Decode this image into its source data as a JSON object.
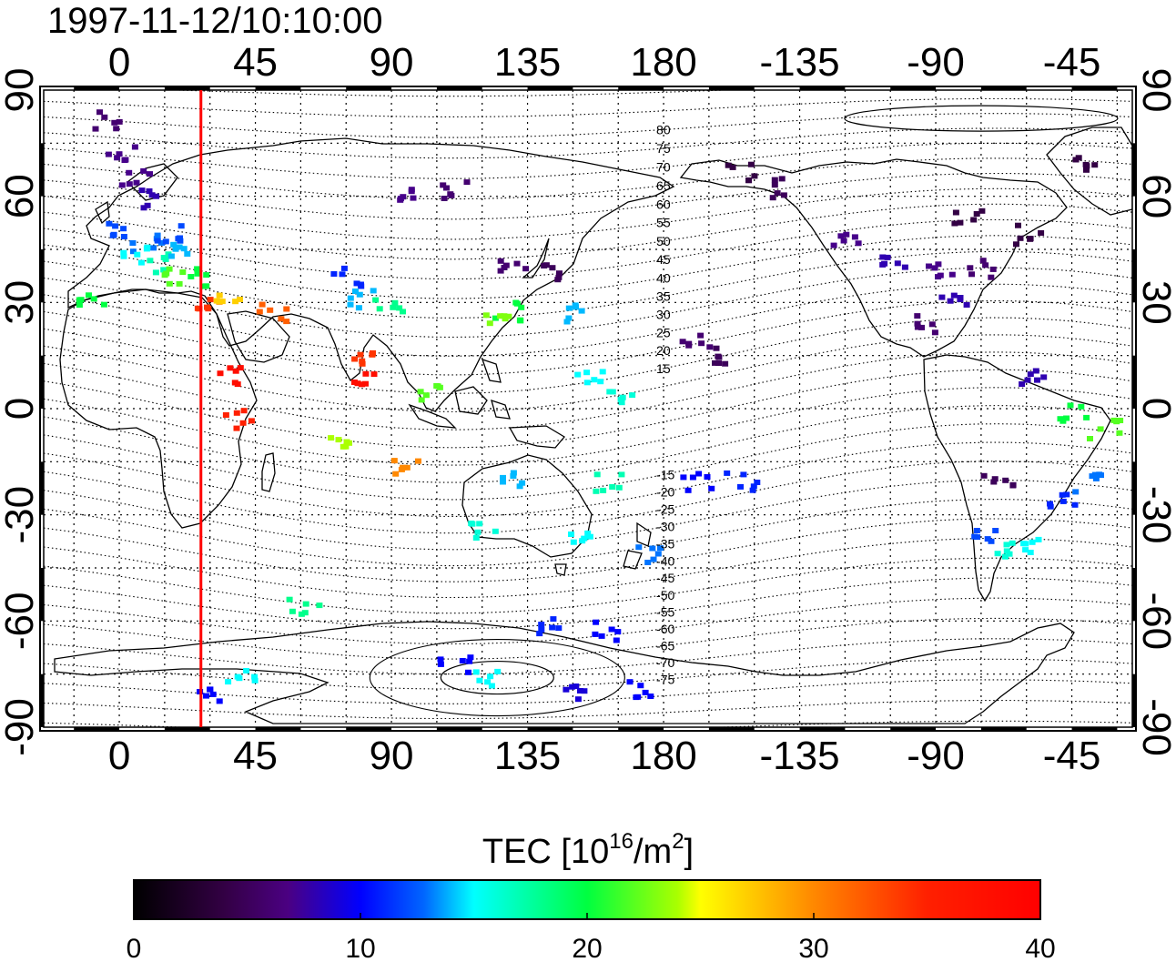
{
  "title": "1997-11-12/10:10:00",
  "top_lon_labels": [
    "0",
    "45",
    "90",
    "135",
    "180",
    "-135",
    "-90",
    "-45"
  ],
  "bottom_lon_labels": [
    "0",
    "45",
    "90",
    "135",
    "180",
    "-135",
    "-90",
    "-45"
  ],
  "lat_labels": [
    "90",
    "60",
    "30",
    "0",
    "-30",
    "-60",
    "-90"
  ],
  "mlat_labels": [
    "80",
    "75",
    "70",
    "65",
    "60",
    "55",
    "50",
    "45",
    "40",
    "35",
    "30",
    "25",
    "20",
    "15",
    "-15",
    "-20",
    "-25",
    "-30",
    "-35",
    "-40",
    "-45",
    "-50",
    "-55",
    "-60",
    "-65",
    "-70",
    "-75"
  ],
  "colorbar": {
    "label_main": "TEC  [10",
    "label_sup1": "16",
    "label_mid": "/m",
    "label_sup2": "2",
    "label_end": "]",
    "ticks": [
      "0",
      "10",
      "20",
      "30",
      "40"
    ],
    "min": 0,
    "max": 40
  },
  "colors": {
    "meridian_line": "#ff0000",
    "frame": "#000000"
  },
  "chart_data": {
    "type": "heatmap",
    "title": "1997-11-12/10:10:00",
    "xlim": [
      -25,
      335
    ],
    "ylim": [
      -90,
      90
    ],
    "value_range": [
      0,
      40
    ],
    "marked_meridian_lon": 27,
    "tec_points": [
      {
        "lon": -5,
        "lat": 82,
        "tec": 6
      },
      {
        "lon": 0,
        "lat": 72,
        "tec": 7
      },
      {
        "lon": 5,
        "lat": 66,
        "tec": 7
      },
      {
        "lon": 10,
        "lat": 60,
        "tec": 8
      },
      {
        "lon": 0,
        "lat": 52,
        "tec": 12
      },
      {
        "lon": 8,
        "lat": 48,
        "tec": 13
      },
      {
        "lon": 15,
        "lat": 50,
        "tec": 12
      },
      {
        "lon": 5,
        "lat": 44,
        "tec": 15
      },
      {
        "lon": 12,
        "lat": 42,
        "tec": 17
      },
      {
        "lon": 20,
        "lat": 45,
        "tec": 14
      },
      {
        "lon": 15,
        "lat": 38,
        "tec": 22
      },
      {
        "lon": 25,
        "lat": 38,
        "tec": 20
      },
      {
        "lon": -10,
        "lat": 32,
        "tec": 20
      },
      {
        "lon": 30,
        "lat": 30,
        "tec": 34
      },
      {
        "lon": 35,
        "lat": 33,
        "tec": 27
      },
      {
        "lon": 50,
        "lat": 28,
        "tec": 32
      },
      {
        "lon": 37,
        "lat": 10,
        "tec": 38
      },
      {
        "lon": 38,
        "lat": -2,
        "tec": 35
      },
      {
        "lon": 75,
        "lat": 38,
        "tec": 11
      },
      {
        "lon": 80,
        "lat": 32,
        "tec": 14
      },
      {
        "lon": 88,
        "lat": 30,
        "tec": 18
      },
      {
        "lon": 78,
        "lat": 15,
        "tec": 34
      },
      {
        "lon": 80,
        "lat": 10,
        "tec": 38
      },
      {
        "lon": 72,
        "lat": -10,
        "tec": 24
      },
      {
        "lon": 100,
        "lat": 5,
        "tec": 22
      },
      {
        "lon": 95,
        "lat": -15,
        "tec": 30
      },
      {
        "lon": 95,
        "lat": 62,
        "tec": 7
      },
      {
        "lon": 110,
        "lat": 62,
        "tec": 6
      },
      {
        "lon": 130,
        "lat": 42,
        "tec": 6
      },
      {
        "lon": 140,
        "lat": 40,
        "tec": 5
      },
      {
        "lon": 128,
        "lat": 28,
        "tec": 20
      },
      {
        "lon": 125,
        "lat": 25,
        "tec": 23
      },
      {
        "lon": 150,
        "lat": 28,
        "tec": 14
      },
      {
        "lon": 155,
        "lat": 10,
        "tec": 15
      },
      {
        "lon": 165,
        "lat": 5,
        "tec": 16
      },
      {
        "lon": 130,
        "lat": -20,
        "tec": 14
      },
      {
        "lon": 150,
        "lat": -35,
        "tec": 15
      },
      {
        "lon": 120,
        "lat": -33,
        "tec": 16
      },
      {
        "lon": 160,
        "lat": -20,
        "tec": 17
      },
      {
        "lon": 175,
        "lat": -40,
        "tec": 13
      },
      {
        "lon": 60,
        "lat": -55,
        "tec": 18
      },
      {
        "lon": 140,
        "lat": -60,
        "tec": 11
      },
      {
        "lon": 160,
        "lat": -62,
        "tec": 10
      },
      {
        "lon": 110,
        "lat": -72,
        "tec": 10
      },
      {
        "lon": 120,
        "lat": -75,
        "tec": 15
      },
      {
        "lon": 150,
        "lat": -80,
        "tec": 9
      },
      {
        "lon": 170,
        "lat": -78,
        "tec": 10
      },
      {
        "lon": 30,
        "lat": -80,
        "tec": 10
      },
      {
        "lon": 40,
        "lat": -75,
        "tec": 15
      },
      {
        "lon": 190,
        "lat": 20,
        "tec": 6
      },
      {
        "lon": 200,
        "lat": 15,
        "tec": 5
      },
      {
        "lon": 190,
        "lat": -20,
        "tec": 10
      },
      {
        "lon": 205,
        "lat": -20,
        "tec": 11
      },
      {
        "lon": 205,
        "lat": 68,
        "tec": 4
      },
      {
        "lon": 215,
        "lat": 63,
        "tec": 5
      },
      {
        "lon": 240,
        "lat": 48,
        "tec": 7
      },
      {
        "lon": 255,
        "lat": 42,
        "tec": 8
      },
      {
        "lon": 270,
        "lat": 40,
        "tec": 7
      },
      {
        "lon": 285,
        "lat": 40,
        "tec": 6
      },
      {
        "lon": 275,
        "lat": 30,
        "tec": 8
      },
      {
        "lon": 265,
        "lat": 25,
        "tec": 6
      },
      {
        "lon": 280,
        "lat": 55,
        "tec": 4
      },
      {
        "lon": 300,
        "lat": 50,
        "tec": 4
      },
      {
        "lon": 320,
        "lat": 70,
        "tec": 4
      },
      {
        "lon": 300,
        "lat": 10,
        "tec": 8
      },
      {
        "lon": 315,
        "lat": 0,
        "tec": 20
      },
      {
        "lon": 325,
        "lat": -5,
        "tec": 22
      },
      {
        "lon": 320,
        "lat": -20,
        "tec": 13
      },
      {
        "lon": 310,
        "lat": -25,
        "tec": 11
      },
      {
        "lon": 300,
        "lat": -38,
        "tec": 15
      },
      {
        "lon": 293,
        "lat": -40,
        "tec": 16
      },
      {
        "lon": 290,
        "lat": -20,
        "tec": 5
      },
      {
        "lon": 285,
        "lat": -35,
        "tec": 12
      }
    ]
  }
}
